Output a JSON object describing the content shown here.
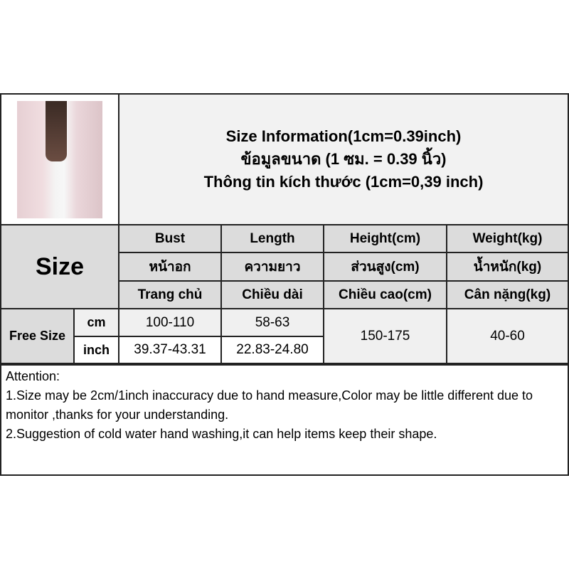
{
  "title": {
    "english": "Size Information(1cm=0.39inch)",
    "thai": "ข้อมูลขนาด (1 ซม. = 0.39 นิ้ว)",
    "vietnamese": "Thông tin kích thước (1cm=0,39 inch)"
  },
  "size_label": "Size",
  "columns": [
    {
      "en": "Bust",
      "th": "หน้าอก",
      "vi": "Trang chủ"
    },
    {
      "en": "Length",
      "th": "ความยาว",
      "vi": "Chiều dài"
    },
    {
      "en": "Height(cm)",
      "th": "ส่วนสูง(cm)",
      "vi": "Chiều cao(cm)"
    },
    {
      "en": "Weight(kg)",
      "th": "น้ำหนัก(kg)",
      "vi": "Cân nặng(kg)"
    }
  ],
  "row": {
    "size": "Free Size",
    "cm_label": "cm",
    "inch_label": "inch",
    "bust_cm": "100-110",
    "bust_inch": "39.37-43.31",
    "length_cm": "58-63",
    "length_inch": "22.83-24.80",
    "height": "150-175",
    "weight": "40-60"
  },
  "attention": {
    "heading": "Attention:",
    "note1": "1.Size may be 2cm/1inch inaccuracy due to hand measure,Color may be little different due to monitor ,thanks for your understanding.",
    "note2": "2.Suggestion of cold water hand washing,it can help items keep their shape."
  }
}
